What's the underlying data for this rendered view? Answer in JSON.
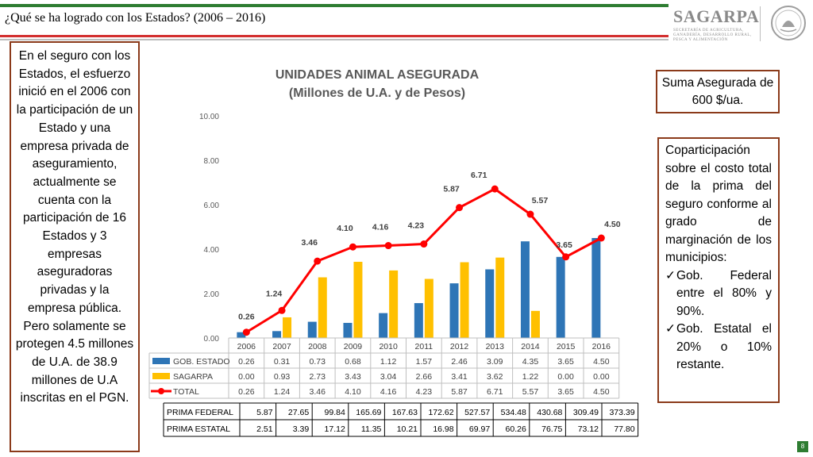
{
  "header": {
    "title": "¿Qué se ha logrado con los Estados? (2006 – 2016)"
  },
  "logo": {
    "name": "SAGARPA",
    "subtitle_lines": [
      "Secretaría de Agricultura,",
      "Ganadería, Desarrollo Rural,",
      "Pesca y Alimentación"
    ]
  },
  "left_box": {
    "text": "En el seguro con los Estados, el esfuerzo inició en el 2006 con la participación de un Estado y una empresa privada de aseguramiento, actualmente se cuenta con la participación de 16 Estados y 3 empresas aseguradoras privadas y la empresa pública. Pero solamente se protegen 4.5 millones de U.A. de 38.9 millones de U.A inscritas en el PGN."
  },
  "suma_box": {
    "text": "Suma Asegurada de 600 $/ua."
  },
  "cop_box": {
    "intro": "Coparticipación sobre el costo total de la prima del seguro conforme al grado de marginación de los municipios:",
    "items": [
      "Gob. Federal entre el 80% y 90%.",
      "Gob. Estatal el 20% o 10% restante."
    ]
  },
  "page_number": "8",
  "chart_data": {
    "type": "bar",
    "title": "UNIDADES ANIMAL ASEGURADA",
    "subtitle": "(Millones de U.A. y de Pesos)",
    "categories": [
      "2006",
      "2007",
      "2008",
      "2009",
      "2010",
      "2011",
      "2012",
      "2013",
      "2014",
      "2015",
      "2016"
    ],
    "ylim": [
      0,
      10
    ],
    "yticks": [
      "0.00",
      "2.00",
      "4.00",
      "6.00",
      "8.00",
      "10.00"
    ],
    "grid": false,
    "series": [
      {
        "name": "GOB. ESTADO",
        "type": "bar",
        "color": "#2e75b6",
        "values": [
          0.26,
          0.31,
          0.73,
          0.68,
          1.12,
          1.57,
          2.46,
          3.09,
          4.35,
          3.65,
          4.5
        ],
        "labels": [
          "0.26",
          "0.31",
          "0.73",
          "0.68",
          "1.12",
          "1.57",
          "2.46",
          "3.09",
          "4.35",
          "3.65",
          "4.50"
        ]
      },
      {
        "name": "SAGARPA",
        "type": "bar",
        "color": "#ffc000",
        "values": [
          0.0,
          0.93,
          2.73,
          3.43,
          3.04,
          2.66,
          3.41,
          3.62,
          1.22,
          0.0,
          0.0
        ],
        "labels": [
          "0.00",
          "0.93",
          "2.73",
          "3.43",
          "3.04",
          "2.66",
          "3.41",
          "3.62",
          "1.22",
          "0.00",
          "0.00"
        ]
      },
      {
        "name": "TOTAL",
        "type": "line",
        "color": "#ff0000",
        "values": [
          0.26,
          1.24,
          3.46,
          4.1,
          4.16,
          4.23,
          5.87,
          6.71,
          5.57,
          3.65,
          4.5
        ],
        "labels": [
          "0.26",
          "1.24",
          "3.46",
          "4.10",
          "4.16",
          "4.23",
          "5.87",
          "6.71",
          "5.57",
          "3.65",
          "4.50"
        ]
      }
    ],
    "prima_table": [
      {
        "name": "PRIMA FEDERAL",
        "values": [
          "5.87",
          "27.65",
          "99.84",
          "165.69",
          "167.63",
          "172.62",
          "527.57",
          "534.48",
          "430.68",
          "309.49",
          "373.39"
        ]
      },
      {
        "name": "PRIMA ESTATAL",
        "values": [
          "2.51",
          "3.39",
          "17.12",
          "11.35",
          "10.21",
          "16.98",
          "69.97",
          "60.26",
          "76.75",
          "73.12",
          "77.80"
        ]
      }
    ]
  }
}
